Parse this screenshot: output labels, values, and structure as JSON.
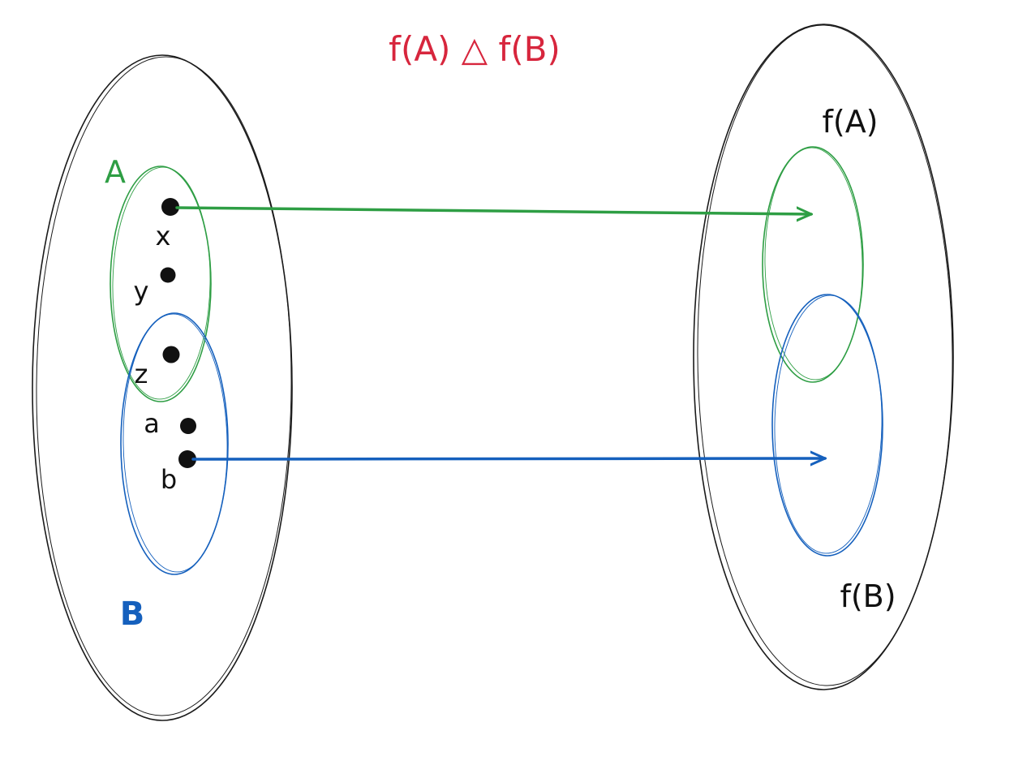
{
  "title": "f(A) △ f(B)",
  "domain_labels": {
    "set_a": "A",
    "set_b": "B"
  },
  "codomain_labels": {
    "image_a": "f(A)",
    "image_b": "f(B)"
  },
  "points": [
    {
      "name": "x",
      "label": "x"
    },
    {
      "name": "y",
      "label": "y"
    },
    {
      "name": "z",
      "label": "z"
    },
    {
      "name": "a",
      "label": "a"
    },
    {
      "name": "b",
      "label": "b"
    }
  ],
  "colors": {
    "title": "#d7263d",
    "set_a": "#2e9e44",
    "set_b": "#1560bd",
    "outline": "#1a1a1a",
    "ink": "#111111"
  }
}
